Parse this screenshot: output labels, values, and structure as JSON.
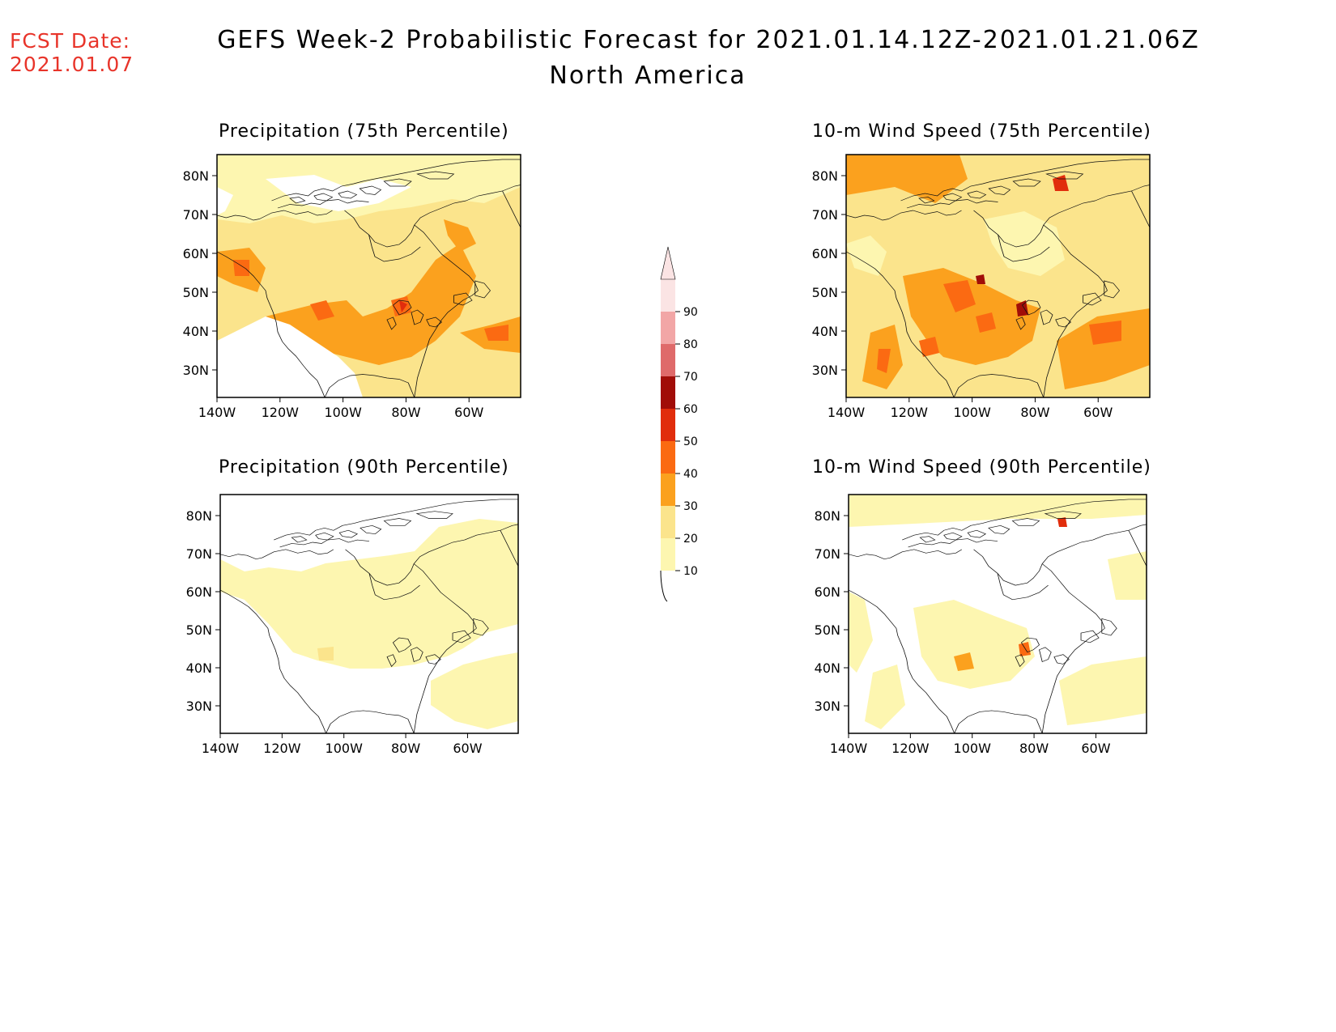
{
  "header": {
    "fcst_label": "FCST Date:",
    "fcst_date": "2021.01.07",
    "title": "GEFS Week-2 Probabilistic Forecast for 2021.01.14.12Z-2021.01.21.06Z",
    "subtitle": "North America"
  },
  "colorbar": {
    "levels": [
      "10",
      "20",
      "30",
      "40",
      "50",
      "60",
      "70",
      "80",
      "90"
    ],
    "colors": [
      "#fdf6b0",
      "#fbe48c",
      "#fba11e",
      "#fb6a12",
      "#e12d0c",
      "#a10d08",
      "#df6a6a",
      "#f2a6a6",
      "#fbe4e4"
    ]
  },
  "axes": {
    "lat_labels": [
      "80N",
      "70N",
      "60N",
      "50N",
      "40N",
      "30N"
    ],
    "lon_labels": [
      "140W",
      "120W",
      "100W",
      "80W",
      "60W"
    ]
  },
  "panels": [
    {
      "id": "precip75",
      "title": "Precipitation (75th Percentile)"
    },
    {
      "id": "wind75",
      "title": "10-m Wind Speed (75th Percentile)"
    },
    {
      "id": "precip90",
      "title": "Precipitation (90th Percentile)"
    },
    {
      "id": "wind90",
      "title": "10-m Wind Speed (90th Percentile)"
    }
  ]
}
